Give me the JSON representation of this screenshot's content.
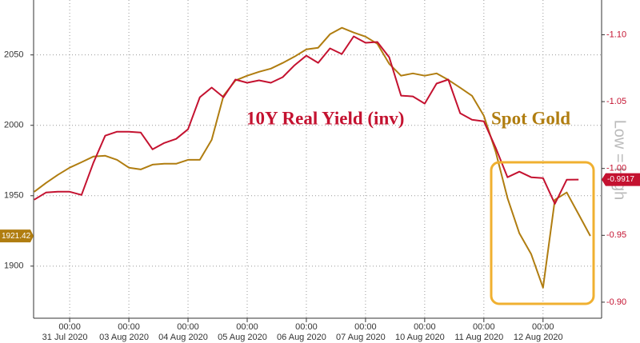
{
  "chart_data": {
    "type": "line",
    "x": [
      -0.6,
      -0.4,
      -0.2,
      0,
      0.2,
      0.4,
      0.6,
      0.8,
      1.0,
      1.2,
      1.4,
      1.6,
      1.8,
      2.0,
      2.2,
      2.4,
      2.6,
      2.8,
      3.0,
      3.2,
      3.4,
      3.6,
      3.8,
      4.0,
      4.2,
      4.4,
      4.6,
      4.8,
      5.0,
      5.2,
      5.4,
      5.6,
      5.8,
      6.0,
      6.2,
      6.4,
      6.6,
      6.8,
      7.0,
      7.2,
      7.4,
      7.6,
      7.8,
      8.0,
      8.2,
      8.4,
      8.6,
      8.8
    ],
    "xlim": [
      -0.61,
      8.99
    ],
    "xticks": [
      {
        "value": 0,
        "label": "00:00"
      },
      {
        "value": 1,
        "label": "00:00"
      },
      {
        "value": 2,
        "label": "00:00"
      },
      {
        "value": 3,
        "label": "00:00"
      },
      {
        "value": 4,
        "label": "00:00"
      },
      {
        "value": 5,
        "label": "00:00"
      },
      {
        "value": 6,
        "label": "00:00"
      },
      {
        "value": 7,
        "label": "00:00"
      },
      {
        "value": 8,
        "label": "00:00"
      }
    ],
    "date_labels": [
      "31 Jul 2020",
      "03 Aug 2020",
      "04 Aug 2020",
      "05 Aug 2020",
      "06 Aug 2020",
      "07 Aug 2020",
      "10 Aug 2020",
      "11 Aug 2020",
      "12 Aug 2020"
    ],
    "ylim": [
      1863,
      2089
    ],
    "yticks": [
      1900,
      1950,
      2000,
      2050
    ],
    "y2lim": [
      -0.888,
      -1.126
    ],
    "y2ticks": [
      {
        "value": -1.1,
        "label": "-1.10"
      },
      {
        "value": -1.05,
        "label": "-1.05"
      },
      {
        "value": -1.0,
        "label": "-1.00"
      },
      {
        "value": -0.95,
        "label": "-0.95"
      },
      {
        "value": -0.9,
        "label": "-0.90"
      }
    ],
    "y2label": "Low = High",
    "grid": true,
    "series": [
      {
        "name": "Spot Gold",
        "color": "#b07d10",
        "values": [
          1952.8,
          1959.1,
          1964.8,
          1969.9,
          1973.8,
          1977.8,
          1978.4,
          1975.5,
          1969.9,
          1968.7,
          1972.1,
          1972.7,
          1972.7,
          1975.5,
          1975.5,
          1989.7,
          2021.0,
          2031.8,
          2035.2,
          2038.0,
          2040.3,
          2044.3,
          2048.8,
          2053.9,
          2055.1,
          2064.7,
          2069.3,
          2065.9,
          2063.0,
          2057.9,
          2043.7,
          2035.2,
          2036.9,
          2035.2,
          2036.9,
          2032.3,
          2026.7,
          2021.0,
          2006.8,
          1981.2,
          1948.3,
          1923.3,
          1908.5,
          1884.7,
          1947.1,
          1952.3,
          1936.9,
          1921.42
        ]
      },
      {
        "name": "10Y Real Yield (inv)",
        "color": "#c41230",
        "axis": "y2",
        "values": [
          -0.9766,
          -0.982,
          -0.9826,
          -0.9826,
          -0.9802,
          -1.0042,
          -1.0245,
          -1.0275,
          -1.0275,
          -1.0269,
          -1.0143,
          -1.0191,
          -1.0221,
          -1.0293,
          -1.0533,
          -1.0605,
          -1.0533,
          -1.0665,
          -1.0641,
          -1.0659,
          -1.0641,
          -1.0683,
          -1.0772,
          -1.0844,
          -1.079,
          -1.0898,
          -1.0856,
          -1.0988,
          -1.094,
          -1.0946,
          -1.0832,
          -1.0545,
          -1.0539,
          -1.0485,
          -1.0635,
          -1.0665,
          -1.0413,
          -1.0365,
          -1.0353,
          -1.0155,
          -0.9934,
          -0.9976,
          -0.9934,
          -0.9928,
          -0.9736,
          -0.9916,
          -0.9917,
          null
        ]
      }
    ]
  }
}
